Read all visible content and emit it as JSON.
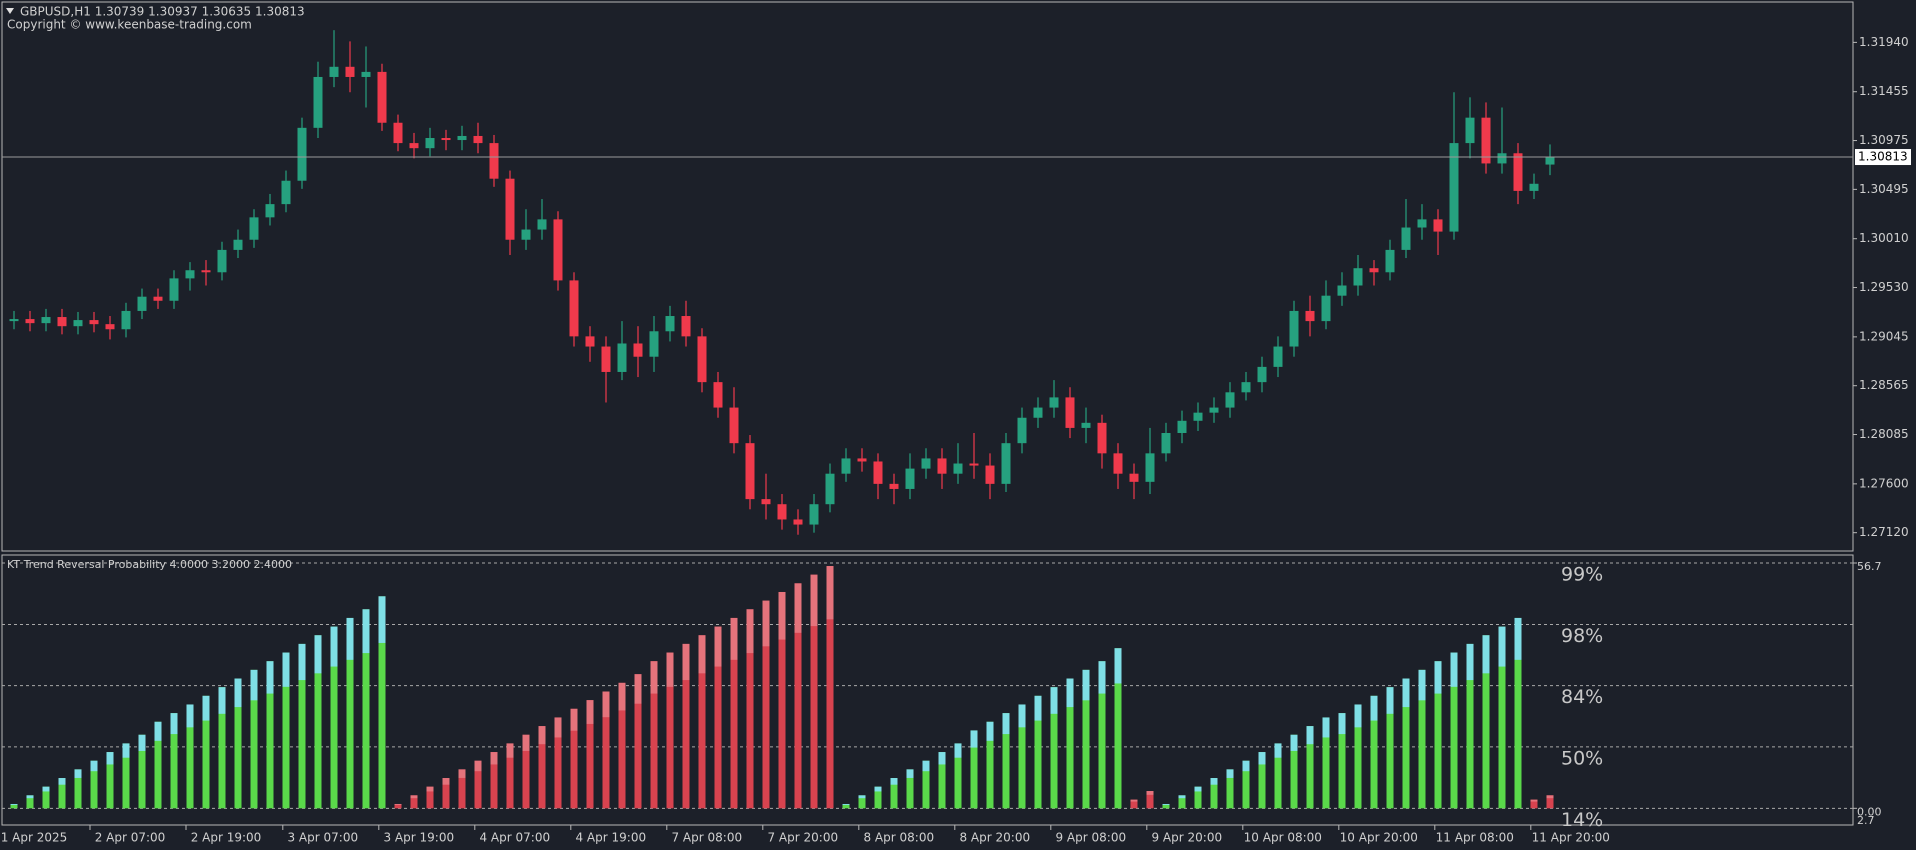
{
  "chart_data": [
    {
      "type": "candlestick",
      "title": "GBPUSD,H1  1.30739 1.30937 1.30635 1.30813",
      "subtitle": "Copyright © www.keenbase-trading.com",
      "up_color": "#26a17f",
      "down_color": "#ef3a4c",
      "ylim": [
        1.2694,
        1.32337
      ],
      "yticks": [
        {
          "value": 1.3194,
          "label": "1.31940"
        },
        1.31455,
        1.30975,
        1.30495,
        {
          "value": 1.3001,
          "label": "1.30010"
        },
        {
          "value": 1.2953,
          "label": "1.29530"
        },
        1.29045,
        1.28565,
        1.28085,
        {
          "value": 1.276,
          "label": "1.27600"
        },
        {
          "value": 1.2712,
          "label": "1.27120"
        }
      ],
      "current_price": 1.30813,
      "open": [
        1.292,
        1.2922,
        1.2918,
        1.2924,
        1.2915,
        1.2921,
        1.2917,
        1.2912,
        1.293,
        1.2944,
        1.294,
        1.2962,
        1.297,
        1.2968,
        1.299,
        1.3,
        1.3022,
        1.3035,
        1.3058,
        1.311,
        1.316,
        1.317,
        1.316,
        1.3165,
        1.3115,
        1.3095,
        1.309,
        1.31,
        1.3098,
        1.3102,
        1.3095,
        1.306,
        1.3,
        1.301,
        1.302,
        1.296,
        1.2905,
        1.2895,
        1.287,
        1.2898,
        1.2885,
        1.291,
        1.2925,
        1.2905,
        1.286,
        1.2835,
        1.28,
        1.2745,
        1.274,
        1.2725,
        1.272,
        1.274,
        1.277,
        1.2785,
        1.2782,
        1.276,
        1.2755,
        1.2775,
        1.2785,
        1.277,
        1.278,
        1.2778,
        1.276,
        1.28,
        1.2825,
        1.2835,
        1.2845,
        1.2815,
        1.282,
        1.279,
        1.277,
        1.2762,
        1.279,
        1.281,
        1.2822,
        1.283,
        1.2835,
        1.285,
        1.286,
        1.2875,
        1.2895,
        1.293,
        1.292,
        1.2945,
        1.2955,
        1.2972,
        1.2968,
        1.299,
        1.3012,
        1.302,
        1.3008,
        1.3095,
        1.312,
        1.3075,
        1.3085,
        1.3048,
        1.30739
      ],
      "high": [
        1.293,
        1.293,
        1.2932,
        1.2932,
        1.2929,
        1.2929,
        1.2925,
        1.2938,
        1.2952,
        1.2952,
        1.297,
        1.2978,
        1.298,
        1.2998,
        1.301,
        1.303,
        1.3045,
        1.3068,
        1.312,
        1.3175,
        1.3206,
        1.3195,
        1.319,
        1.3173,
        1.3123,
        1.3105,
        1.311,
        1.3108,
        1.3112,
        1.3115,
        1.3103,
        1.3068,
        1.303,
        1.304,
        1.3028,
        1.2968,
        1.2915,
        1.2905,
        1.292,
        1.2915,
        1.2925,
        1.2935,
        1.294,
        1.2913,
        1.287,
        1.2855,
        1.2808,
        1.277,
        1.275,
        1.2735,
        1.275,
        1.278,
        1.2795,
        1.2795,
        1.279,
        1.277,
        1.279,
        1.2795,
        1.2795,
        1.28,
        1.281,
        1.279,
        1.281,
        1.2835,
        1.2845,
        1.2862,
        1.2855,
        1.2835,
        1.2828,
        1.28,
        1.278,
        1.2815,
        1.282,
        1.2832,
        1.284,
        1.2845,
        1.286,
        1.287,
        1.2885,
        1.2905,
        1.294,
        1.2945,
        1.296,
        1.2968,
        1.2985,
        1.298,
        1.3,
        1.304,
        1.3035,
        1.303,
        1.3145,
        1.314,
        1.3135,
        1.313,
        1.3095,
        1.3065,
        1.30937
      ],
      "low": [
        1.2912,
        1.291,
        1.291,
        1.2907,
        1.2907,
        1.2909,
        1.2902,
        1.2904,
        1.2922,
        1.2932,
        1.2932,
        1.295,
        1.2955,
        1.296,
        1.2982,
        1.2992,
        1.3014,
        1.3027,
        1.305,
        1.31,
        1.315,
        1.3145,
        1.313,
        1.3107,
        1.3087,
        1.308,
        1.3082,
        1.3088,
        1.3088,
        1.3085,
        1.3052,
        1.2985,
        1.299,
        1.3,
        1.295,
        1.2895,
        1.288,
        1.284,
        1.2862,
        1.2865,
        1.287,
        1.29,
        1.2895,
        1.285,
        1.2825,
        1.279,
        1.2735,
        1.2725,
        1.2715,
        1.271,
        1.2712,
        1.2732,
        1.2762,
        1.2772,
        1.2745,
        1.274,
        1.2745,
        1.2765,
        1.2755,
        1.276,
        1.2765,
        1.2745,
        1.2752,
        1.279,
        1.2815,
        1.2825,
        1.2805,
        1.28,
        1.2775,
        1.2755,
        1.2745,
        1.275,
        1.2782,
        1.28,
        1.2812,
        1.282,
        1.2825,
        1.2842,
        1.285,
        1.2865,
        1.2885,
        1.2905,
        1.2912,
        1.2935,
        1.2945,
        1.2955,
        1.296,
        1.2982,
        1.3,
        1.2985,
        1.3,
        1.308,
        1.3065,
        1.3065,
        1.3035,
        1.304,
        1.30635
      ],
      "close": [
        1.2922,
        1.2918,
        1.2924,
        1.2915,
        1.2921,
        1.2917,
        1.2912,
        1.293,
        1.2944,
        1.294,
        1.2962,
        1.297,
        1.2968,
        1.299,
        1.3,
        1.3022,
        1.3035,
        1.3058,
        1.311,
        1.316,
        1.317,
        1.316,
        1.3165,
        1.3115,
        1.3095,
        1.309,
        1.31,
        1.3098,
        1.3102,
        1.3095,
        1.306,
        1.3,
        1.301,
        1.302,
        1.296,
        1.2905,
        1.2895,
        1.287,
        1.2898,
        1.2885,
        1.291,
        1.2925,
        1.2905,
        1.286,
        1.2835,
        1.28,
        1.2745,
        1.274,
        1.2725,
        1.272,
        1.274,
        1.277,
        1.2785,
        1.2782,
        1.276,
        1.2755,
        1.2775,
        1.2785,
        1.277,
        1.278,
        1.2778,
        1.276,
        1.28,
        1.2825,
        1.2835,
        1.2845,
        1.2815,
        1.282,
        1.279,
        1.277,
        1.2762,
        1.279,
        1.281,
        1.2822,
        1.283,
        1.2835,
        1.285,
        1.286,
        1.2875,
        1.2895,
        1.293,
        1.292,
        1.2945,
        1.2955,
        1.2972,
        1.2968,
        1.299,
        1.3012,
        1.302,
        1.3008,
        1.3095,
        1.312,
        1.3075,
        1.3085,
        1.3048,
        1.3055,
        1.30813
      ]
    },
    {
      "type": "bar",
      "title": "KT Trend Reversal Probability 4.0000 3.2000 2.4000",
      "ylim": [
        -2.7,
        56.7
      ],
      "yticks": [
        56.7,
        {
          "value": 0,
          "label": "0.00"
        }
      ],
      "bottom_label": "2.7",
      "levels": [
        {
          "value": 56.7,
          "label": "99%"
        },
        {
          "value": 42.5,
          "label": "98%"
        },
        {
          "value": 28.35,
          "label": "84%"
        },
        {
          "value": 14.2,
          "label": "50%"
        },
        {
          "value": 0,
          "label": "14%"
        }
      ],
      "xticks": [
        {
          "value": 1.25,
          "label": "1 Apr 2025"
        },
        {
          "value": 7.25,
          "label": "2 Apr 07:00"
        },
        {
          "value": 13.25,
          "label": "2 Apr 19:00"
        },
        {
          "value": 19.3,
          "label": "3 Apr 07:00"
        },
        {
          "value": 25.3,
          "label": "3 Apr 19:00"
        },
        {
          "value": 31.3,
          "label": "4 Apr 07:00"
        },
        {
          "value": 37.3,
          "label": "4 Apr 19:00"
        },
        {
          "value": 43.3,
          "label": "7 Apr 08:00"
        },
        {
          "value": 49.3,
          "label": "7 Apr 20:00"
        },
        {
          "value": 55.3,
          "label": "8 Apr 08:00"
        },
        {
          "value": 61.3,
          "label": "8 Apr 20:00"
        },
        {
          "value": 67.3,
          "label": "9 Apr 08:00"
        },
        {
          "value": 73.3,
          "label": "9 Apr 20:00"
        },
        {
          "value": 79.3,
          "label": "10 Apr 08:00"
        },
        {
          "value": 85.3,
          "label": "10 Apr 20:00"
        },
        {
          "value": 91.3,
          "label": "11 Apr 08:00"
        },
        {
          "value": 97.3,
          "label": "11 Apr 20:00"
        }
      ],
      "cap_colors": {
        "#5ad94a": "#7fdfe6",
        "#d8434f": "#e5737c"
      },
      "values": [
        1,
        3,
        5,
        7,
        9,
        11,
        13,
        15,
        17,
        20,
        22,
        24,
        26,
        28,
        30,
        32,
        34,
        36,
        38,
        40,
        42,
        44,
        46,
        49,
        1,
        3,
        5,
        7,
        9,
        11,
        13,
        15,
        17,
        19,
        21,
        23,
        25,
        27,
        29,
        31,
        34,
        36,
        38,
        40,
        42,
        44,
        46,
        48,
        50,
        52,
        54,
        56,
        1,
        3,
        5,
        7,
        9,
        11,
        13,
        15,
        18,
        20,
        22,
        24,
        26,
        28,
        30,
        32,
        34,
        37,
        2,
        4,
        1,
        3,
        5,
        7,
        9,
        11,
        13,
        15,
        17,
        19,
        21,
        22,
        24,
        26,
        28,
        30,
        32,
        34,
        36,
        38,
        40,
        42,
        44,
        2,
        3
      ],
      "colors": [
        "#5ad94a",
        "#5ad94a",
        "#5ad94a",
        "#5ad94a",
        "#5ad94a",
        "#5ad94a",
        "#5ad94a",
        "#5ad94a",
        "#5ad94a",
        "#5ad94a",
        "#5ad94a",
        "#5ad94a",
        "#5ad94a",
        "#5ad94a",
        "#5ad94a",
        "#5ad94a",
        "#5ad94a",
        "#5ad94a",
        "#5ad94a",
        "#5ad94a",
        "#5ad94a",
        "#5ad94a",
        "#5ad94a",
        "#5ad94a",
        "#d8434f",
        "#d8434f",
        "#d8434f",
        "#d8434f",
        "#d8434f",
        "#d8434f",
        "#d8434f",
        "#d8434f",
        "#d8434f",
        "#d8434f",
        "#d8434f",
        "#d8434f",
        "#d8434f",
        "#d8434f",
        "#d8434f",
        "#d8434f",
        "#d8434f",
        "#d8434f",
        "#d8434f",
        "#d8434f",
        "#d8434f",
        "#d8434f",
        "#d8434f",
        "#d8434f",
        "#d8434f",
        "#d8434f",
        "#d8434f",
        "#d8434f",
        "#5ad94a",
        "#5ad94a",
        "#5ad94a",
        "#5ad94a",
        "#5ad94a",
        "#5ad94a",
        "#5ad94a",
        "#5ad94a",
        "#5ad94a",
        "#5ad94a",
        "#5ad94a",
        "#5ad94a",
        "#5ad94a",
        "#5ad94a",
        "#5ad94a",
        "#5ad94a",
        "#5ad94a",
        "#5ad94a",
        "#d8434f",
        "#d8434f",
        "#5ad94a",
        "#5ad94a",
        "#5ad94a",
        "#5ad94a",
        "#5ad94a",
        "#5ad94a",
        "#5ad94a",
        "#5ad94a",
        "#5ad94a",
        "#5ad94a",
        "#5ad94a",
        "#5ad94a",
        "#5ad94a",
        "#5ad94a",
        "#5ad94a",
        "#5ad94a",
        "#5ad94a",
        "#5ad94a",
        "#5ad94a",
        "#5ad94a",
        "#5ad94a",
        "#5ad94a",
        "#5ad94a",
        "#d8434f",
        "#d8434f"
      ]
    }
  ]
}
